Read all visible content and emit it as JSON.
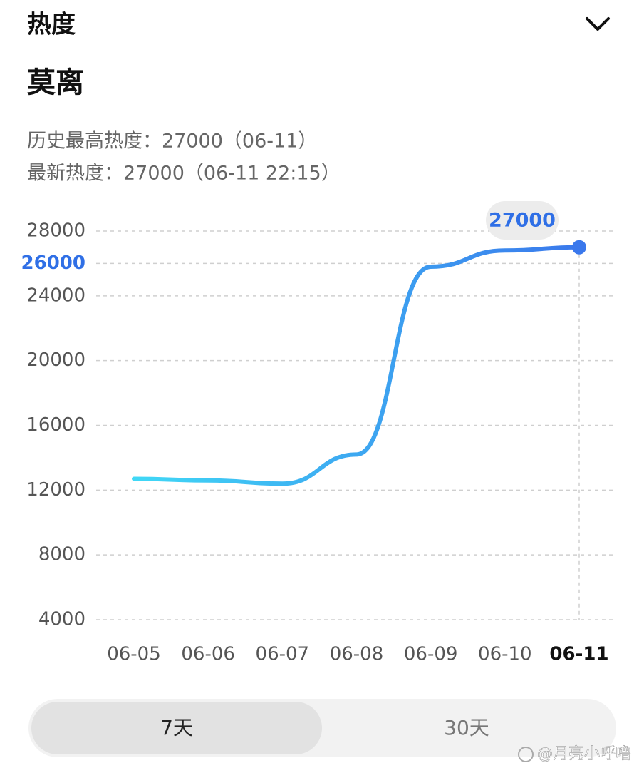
{
  "header": {
    "title": "热度"
  },
  "topic": {
    "name": "莫离",
    "peak": "历史最高热度：27000（06-11）",
    "latest": "最新热度：27000（06-11 22:15）"
  },
  "chart_data": {
    "type": "line",
    "categories": [
      "06-05",
      "06-06",
      "06-07",
      "06-08",
      "06-09",
      "06-10",
      "06-11"
    ],
    "values": [
      12700,
      12600,
      12400,
      14200,
      25800,
      26800,
      27000
    ],
    "color_start": "#40d8f6",
    "color_end": "#3a78ec",
    "ylim": [
      4000,
      28000
    ],
    "yticks": [
      4000,
      8000,
      12000,
      16000,
      20000,
      24000,
      28000
    ],
    "highlight_ytick": 26000,
    "highlight_color": "#2f6fe6",
    "grid": true
  },
  "tabs": [
    "7天",
    "30天"
  ],
  "watermark": "@月亮小呼噜"
}
